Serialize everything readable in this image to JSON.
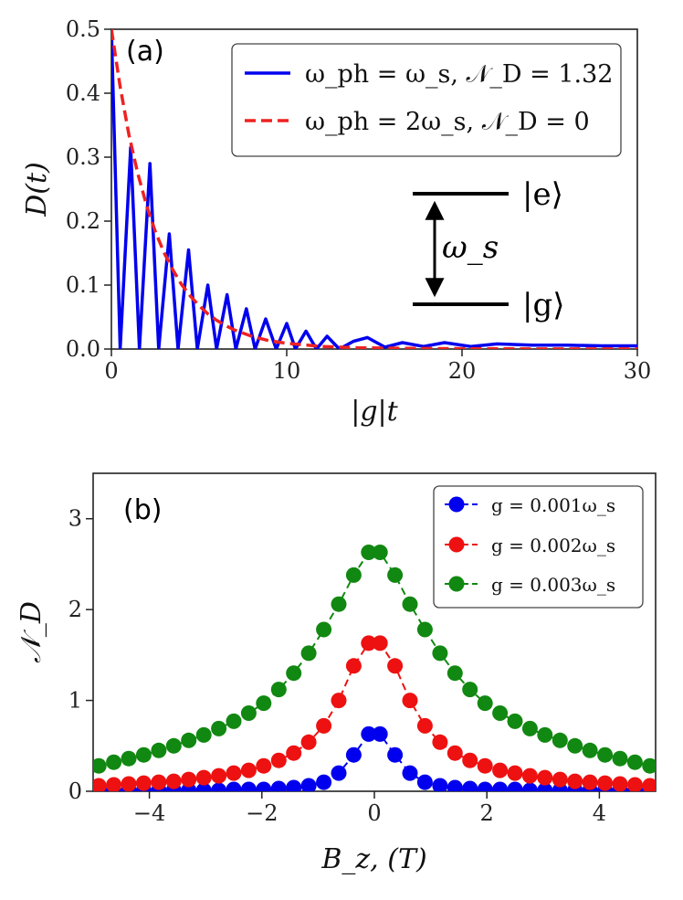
{
  "chart_data": [
    {
      "type": "line",
      "panel": "(a)",
      "xlabel": "|g|t",
      "ylabel": "D(t)",
      "xlim": [
        0,
        30
      ],
      "ylim": [
        0,
        0.5
      ],
      "xticks": [
        "0",
        "10",
        "20",
        "30"
      ],
      "yticks": [
        "0.0",
        "0.1",
        "0.2",
        "0.3",
        "0.4",
        "0.5"
      ],
      "series": [
        {
          "name": "ω_ph = ω_s, 𝒩_D = 1.32",
          "style": "solid",
          "color": "#0000ee",
          "x": [
            0,
            0.5,
            1.1,
            1.6,
            2.2,
            2.7,
            3.3,
            3.8,
            4.4,
            4.9,
            5.5,
            6.0,
            6.6,
            7.1,
            7.7,
            8.2,
            8.8,
            9.4,
            10.0,
            10.5,
            11.1,
            11.7,
            12.3,
            13.0,
            13.8,
            14.6,
            15.6,
            16.6,
            17.8,
            19.0,
            20.5,
            22.0,
            24.0,
            26.0,
            28.0,
            30.0
          ],
          "y": [
            0.5,
            0.0,
            0.315,
            0.0,
            0.29,
            0.0,
            0.18,
            0.0,
            0.155,
            0.0,
            0.1,
            0.0,
            0.085,
            0.0,
            0.063,
            0.0,
            0.047,
            0.0,
            0.04,
            0.0,
            0.028,
            0.0,
            0.02,
            0.0,
            0.012,
            0.018,
            0.003,
            0.01,
            0.004,
            0.01,
            0.004,
            0.008,
            0.006,
            0.006,
            0.005,
            0.005
          ]
        },
        {
          "name": "ω_ph = 2ω_s, 𝒩_D = 0",
          "style": "dashed",
          "color": "#ee2222",
          "x": [
            0,
            0.5,
            1,
            1.5,
            2,
            2.5,
            3,
            3.5,
            4,
            4.5,
            5,
            5.5,
            6,
            6.5,
            7,
            7.5,
            8,
            9,
            10,
            12,
            14,
            17,
            20,
            25,
            30
          ],
          "y": [
            0.5,
            0.41,
            0.335,
            0.275,
            0.225,
            0.184,
            0.151,
            0.124,
            0.101,
            0.083,
            0.068,
            0.055,
            0.045,
            0.037,
            0.03,
            0.025,
            0.02,
            0.013,
            0.009,
            0.004,
            0.002,
            0.001,
            0.0005,
            0.0002,
            0.0001
          ]
        }
      ],
      "inset": {
        "upper_level": "|e⟩",
        "lower_level": "|g⟩",
        "gap": "ω_s"
      }
    },
    {
      "type": "scatter",
      "panel": "(b)",
      "xlabel": "B_z, (T)",
      "ylabel": "𝒩_D",
      "xlim": [
        -5,
        5
      ],
      "ylim": [
        0,
        3.5
      ],
      "xticks": [
        "−4",
        "−2",
        "0",
        "2",
        "4"
      ],
      "yticks": [
        "0",
        "1",
        "2",
        "3"
      ],
      "x": [
        -4.9,
        -4.633,
        -4.367,
        -4.1,
        -3.833,
        -3.567,
        -3.3,
        -3.033,
        -2.767,
        -2.5,
        -2.233,
        -1.967,
        -1.7,
        -1.433,
        -1.167,
        -0.9,
        -0.633,
        -0.367,
        -0.1,
        0.1,
        0.367,
        0.633,
        0.9,
        1.167,
        1.433,
        1.7,
        1.967,
        2.233,
        2.5,
        2.767,
        3.033,
        3.3,
        3.567,
        3.833,
        4.1,
        4.367,
        4.633,
        4.9
      ],
      "series": [
        {
          "name": "g = 0.001ω_s",
          "color": "#0000ee",
          "values": [
            0.01,
            0.01,
            0.01,
            0.01,
            0.01,
            0.01,
            0.01,
            0.01,
            0.01,
            0.02,
            0.02,
            0.02,
            0.03,
            0.04,
            0.06,
            0.1,
            0.2,
            0.4,
            0.63,
            0.63,
            0.4,
            0.2,
            0.1,
            0.06,
            0.04,
            0.03,
            0.02,
            0.02,
            0.02,
            0.01,
            0.01,
            0.01,
            0.01,
            0.01,
            0.01,
            0.01,
            0.01,
            0.01
          ]
        },
        {
          "name": "g = 0.002ω_s",
          "color": "#ee1111",
          "values": [
            0.06,
            0.07,
            0.08,
            0.09,
            0.1,
            0.11,
            0.13,
            0.15,
            0.17,
            0.2,
            0.23,
            0.28,
            0.34,
            0.42,
            0.54,
            0.72,
            1.0,
            1.38,
            1.63,
            1.63,
            1.38,
            1.0,
            0.72,
            0.54,
            0.42,
            0.34,
            0.28,
            0.23,
            0.2,
            0.17,
            0.15,
            0.13,
            0.11,
            0.1,
            0.09,
            0.08,
            0.07,
            0.06
          ]
        },
        {
          "name": "g = 0.003ω_s",
          "color": "#118811",
          "values": [
            0.28,
            0.32,
            0.36,
            0.4,
            0.45,
            0.5,
            0.56,
            0.62,
            0.69,
            0.77,
            0.86,
            0.97,
            1.12,
            1.3,
            1.52,
            1.78,
            2.06,
            2.38,
            2.63,
            2.63,
            2.38,
            2.06,
            1.78,
            1.52,
            1.3,
            1.12,
            0.97,
            0.86,
            0.77,
            0.69,
            0.62,
            0.56,
            0.5,
            0.45,
            0.4,
            0.36,
            0.32,
            0.28
          ]
        }
      ]
    }
  ]
}
